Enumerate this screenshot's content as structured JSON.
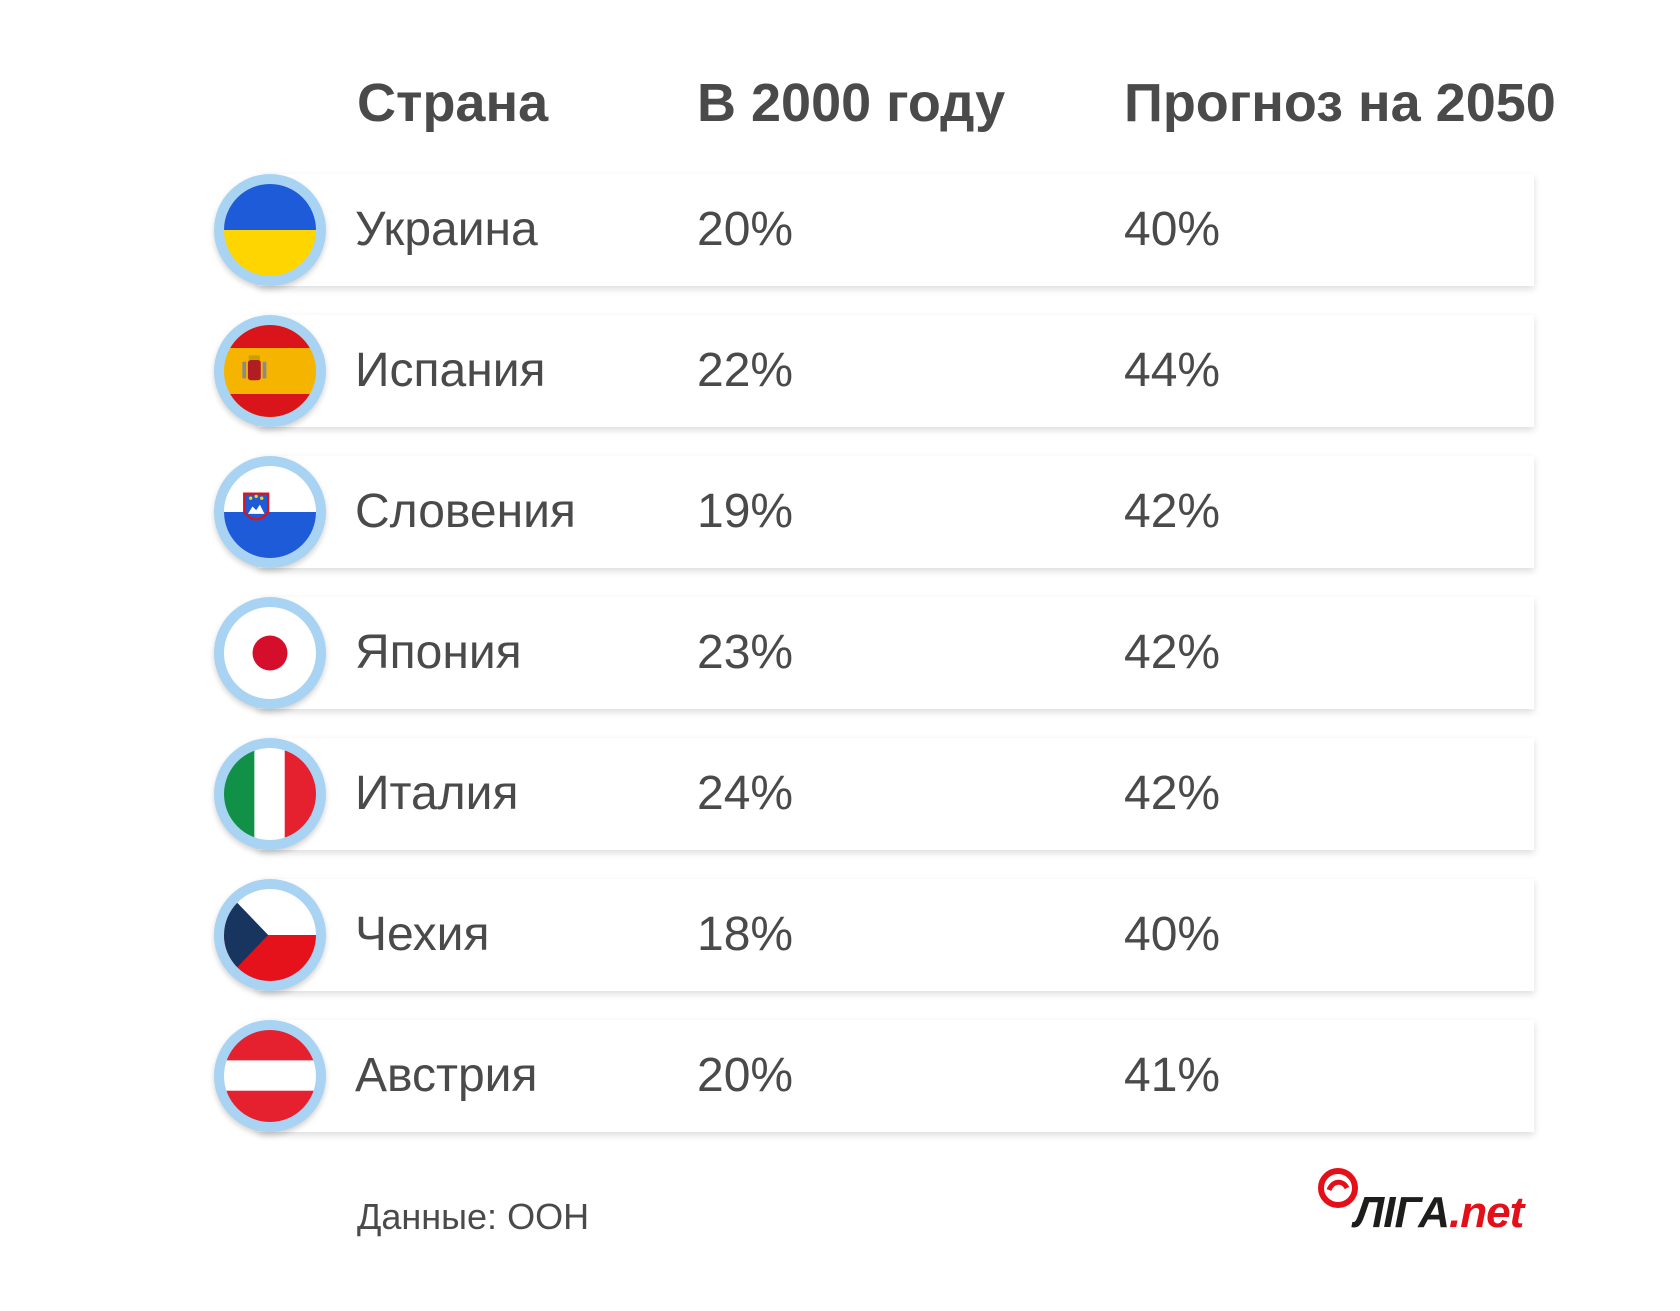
{
  "chart_data": {
    "type": "table",
    "columns": [
      "Страна",
      "В 2000 году",
      "Прогноз на 2050"
    ],
    "rows": [
      {
        "country": "Украина",
        "flag_icon": "ukraine-flag-icon",
        "y2000": "20%",
        "y2050": "40%"
      },
      {
        "country": "Испания",
        "flag_icon": "spain-flag-icon",
        "y2000": "22%",
        "y2050": "44%"
      },
      {
        "country": "Словения",
        "flag_icon": "slovenia-flag-icon",
        "y2000": "19%",
        "y2050": "42%"
      },
      {
        "country": "Япония",
        "flag_icon": "japan-flag-icon",
        "y2000": "23%",
        "y2050": "42%"
      },
      {
        "country": "Италия",
        "flag_icon": "italy-flag-icon",
        "y2000": "24%",
        "y2050": "42%"
      },
      {
        "country": "Чехия",
        "flag_icon": "czech-flag-icon",
        "y2000": "18%",
        "y2050": "40%"
      },
      {
        "country": "Австрия",
        "flag_icon": "austria-flag-icon",
        "y2000": "20%",
        "y2050": "41%"
      }
    ]
  },
  "source": "Данные: ООН",
  "logo": {
    "main": "ЛІГА",
    "suffix": ".net"
  },
  "colors": {
    "text": "#4a4a4a",
    "flag_ring": "#a9d3f2",
    "brand_red": "#e3101a"
  }
}
